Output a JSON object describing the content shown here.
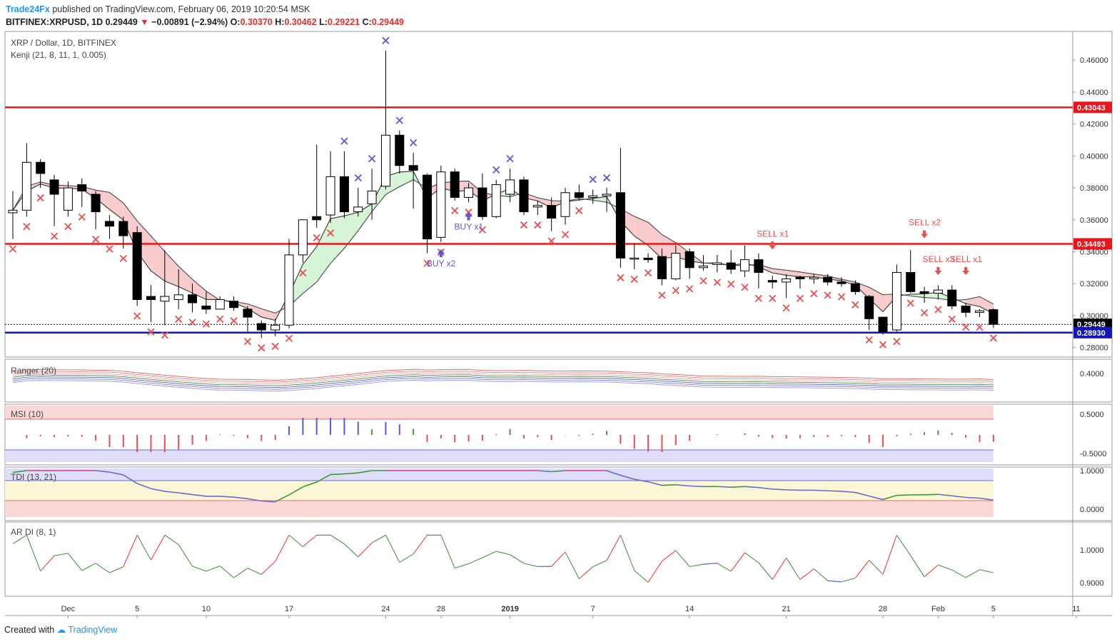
{
  "header": {
    "publisher": "Trade24Fx",
    "published_text": "published on TradingView.com, February 06, 2019 10:20:54 MSK",
    "symbol": "BITFINEX:XRPUSD, 1D",
    "last": "0.29449",
    "change": "−0.00891 (−2.94%)",
    "open_label": "O:",
    "open": "0.30370",
    "high_label": "H:",
    "high": "0.30462",
    "low_label": "L:",
    "low": "0.29221",
    "close_label": "C:",
    "close": "0.29449"
  },
  "main_pane": {
    "title": "XRP / Dollar, 1D, BITFINEX",
    "indicator": "Kenji (21, 8, 11, 1, 0.005)"
  },
  "sub_panes": {
    "ranger": "Ranger (20)",
    "msi": "MSI (10)",
    "tdi": "TDI (13, 21)",
    "ardi": "AR DI (8, 1)"
  },
  "footer": {
    "created_with": "Created with",
    "brand": "TradingView"
  },
  "colors": {
    "up_candle": "#ffffff",
    "down_candle": "#000000",
    "resistance": "#e8161c",
    "support": "#1515b8",
    "buy": "#5a5ad8",
    "sell": "#e85050",
    "band_fill_red": "#f8cccc",
    "band_fill_green": "#d6f5d6",
    "band_fill_blue": "#d6d6f5"
  },
  "chart_data": {
    "type": "candlestick",
    "x_ticks": [
      "Dec",
      "5",
      "10",
      "17",
      "24",
      "28",
      "2019",
      "7",
      "14",
      "21",
      "28",
      "Feb",
      "5",
      "11"
    ],
    "y_ticks": [
      "0.46000",
      "0.44000",
      "0.42000",
      "0.40000",
      "0.38000",
      "0.36000",
      "0.34000",
      "0.32000",
      "0.30000",
      "0.28000"
    ],
    "ylim": [
      0.274,
      0.478
    ],
    "price_labels": [
      {
        "name": "resistance-high",
        "value": 0.43043,
        "label": "0.43043"
      },
      {
        "name": "resistance-mid",
        "value": 0.34493,
        "label": "0.34493"
      },
      {
        "name": "last-price",
        "value": 0.29449,
        "label": "0.29449"
      },
      {
        "name": "support",
        "value": 0.2893,
        "label": "0.28930"
      }
    ],
    "candles": [
      [
        0.3644,
        0.366,
        0.348,
        0.378
      ],
      [
        0.366,
        0.396,
        0.362,
        0.408
      ],
      [
        0.396,
        0.389,
        0.38,
        0.398
      ],
      [
        0.385,
        0.376,
        0.356,
        0.388
      ],
      [
        0.366,
        0.38,
        0.362,
        0.384
      ],
      [
        0.382,
        0.378,
        0.368,
        0.386
      ],
      [
        0.376,
        0.365,
        0.354,
        0.378
      ],
      [
        0.359,
        0.356,
        0.348,
        0.363
      ],
      [
        0.359,
        0.35,
        0.342,
        0.362
      ],
      [
        0.352,
        0.31,
        0.306,
        0.356
      ],
      [
        0.312,
        0.31,
        0.296,
        0.319
      ],
      [
        0.309,
        0.312,
        0.294,
        0.341
      ],
      [
        0.31,
        0.313,
        0.304,
        0.329
      ],
      [
        0.313,
        0.308,
        0.302,
        0.32
      ],
      [
        0.306,
        0.304,
        0.301,
        0.315
      ],
      [
        0.304,
        0.31,
        0.304,
        0.312
      ],
      [
        0.309,
        0.305,
        0.303,
        0.312
      ],
      [
        0.304,
        0.299,
        0.29,
        0.306
      ],
      [
        0.295,
        0.291,
        0.286,
        0.297
      ],
      [
        0.291,
        0.294,
        0.287,
        0.298
      ],
      [
        0.294,
        0.338,
        0.292,
        0.348
      ],
      [
        0.338,
        0.36,
        0.333,
        0.36
      ],
      [
        0.362,
        0.36,
        0.355,
        0.407
      ],
      [
        0.363,
        0.387,
        0.358,
        0.403
      ],
      [
        0.387,
        0.365,
        0.361,
        0.403
      ],
      [
        0.365,
        0.368,
        0.362,
        0.38
      ],
      [
        0.37,
        0.378,
        0.36,
        0.392
      ],
      [
        0.381,
        0.413,
        0.379,
        0.466
      ],
      [
        0.413,
        0.394,
        0.389,
        0.416
      ],
      [
        0.394,
        0.391,
        0.367,
        0.402
      ],
      [
        0.388,
        0.348,
        0.339,
        0.389
      ],
      [
        0.349,
        0.39,
        0.346,
        0.394
      ],
      [
        0.39,
        0.374,
        0.372,
        0.392
      ],
      [
        0.374,
        0.38,
        0.371,
        0.383
      ],
      [
        0.38,
        0.362,
        0.36,
        0.389
      ],
      [
        0.362,
        0.382,
        0.361,
        0.385
      ],
      [
        0.376,
        0.385,
        0.371,
        0.392
      ],
      [
        0.385,
        0.365,
        0.363,
        0.387
      ],
      [
        0.368,
        0.369,
        0.363,
        0.372
      ],
      [
        0.369,
        0.361,
        0.353,
        0.374
      ],
      [
        0.362,
        0.377,
        0.357,
        0.38
      ],
      [
        0.377,
        0.374,
        0.372,
        0.382
      ],
      [
        0.374,
        0.375,
        0.37,
        0.379
      ],
      [
        0.375,
        0.376,
        0.365,
        0.38
      ],
      [
        0.377,
        0.336,
        0.33,
        0.405
      ],
      [
        0.336,
        0.336,
        0.329,
        0.345
      ],
      [
        0.336,
        0.335,
        0.333,
        0.339
      ],
      [
        0.337,
        0.323,
        0.319,
        0.342
      ],
      [
        0.323,
        0.339,
        0.322,
        0.344
      ],
      [
        0.34,
        0.33,
        0.323,
        0.342
      ],
      [
        0.33,
        0.331,
        0.328,
        0.338
      ],
      [
        0.332,
        0.333,
        0.327,
        0.338
      ],
      [
        0.333,
        0.329,
        0.326,
        0.341
      ],
      [
        0.328,
        0.335,
        0.324,
        0.344
      ],
      [
        0.335,
        0.327,
        0.317,
        0.339
      ],
      [
        0.322,
        0.321,
        0.317,
        0.325
      ],
      [
        0.321,
        0.323,
        0.311,
        0.326
      ],
      [
        0.324,
        0.323,
        0.317,
        0.325
      ],
      [
        0.323,
        0.324,
        0.32,
        0.326
      ],
      [
        0.324,
        0.321,
        0.319,
        0.326
      ],
      [
        0.321,
        0.32,
        0.318,
        0.324
      ],
      [
        0.32,
        0.315,
        0.313,
        0.322
      ],
      [
        0.312,
        0.298,
        0.291,
        0.313
      ],
      [
        0.299,
        0.29,
        0.288,
        0.299
      ],
      [
        0.291,
        0.327,
        0.29,
        0.332
      ],
      [
        0.327,
        0.315,
        0.314,
        0.341
      ],
      [
        0.315,
        0.314,
        0.308,
        0.318
      ],
      [
        0.314,
        0.316,
        0.31,
        0.319
      ],
      [
        0.316,
        0.306,
        0.304,
        0.319
      ],
      [
        0.306,
        0.302,
        0.299,
        0.308
      ],
      [
        0.302,
        0.303,
        0.299,
        0.304
      ],
      [
        0.3037,
        0.2945,
        0.2922,
        0.3046
      ]
    ],
    "signals": [
      {
        "type": "BUY",
        "count": "x2",
        "label": "BUY x2",
        "bar": 31,
        "price": 0.338
      },
      {
        "type": "BUY",
        "count": "x1",
        "label": "BUY x1",
        "bar": 33,
        "price": 0.361
      },
      {
        "type": "SELL",
        "count": "x1",
        "label": "SELL x1",
        "bar": 55,
        "price": 0.345
      },
      {
        "type": "SELL",
        "count": "x2",
        "label": "SELL x2",
        "bar": 66,
        "price": 0.352
      },
      {
        "type": "SELL",
        "count": "x3",
        "label": "SELL x3",
        "bar": 67,
        "price": 0.329
      },
      {
        "type": "SELL",
        "count": "x1",
        "label": "SELL x1",
        "bar": 69,
        "price": 0.329
      }
    ],
    "sub_y_ticks": {
      "ranger": [
        "0.4000"
      ],
      "msi": [
        "0.5000",
        "-0.5000"
      ],
      "tdi": [
        "1.0000",
        "0.0000"
      ],
      "ardi": [
        "1.0000",
        "0.9000"
      ]
    }
  }
}
